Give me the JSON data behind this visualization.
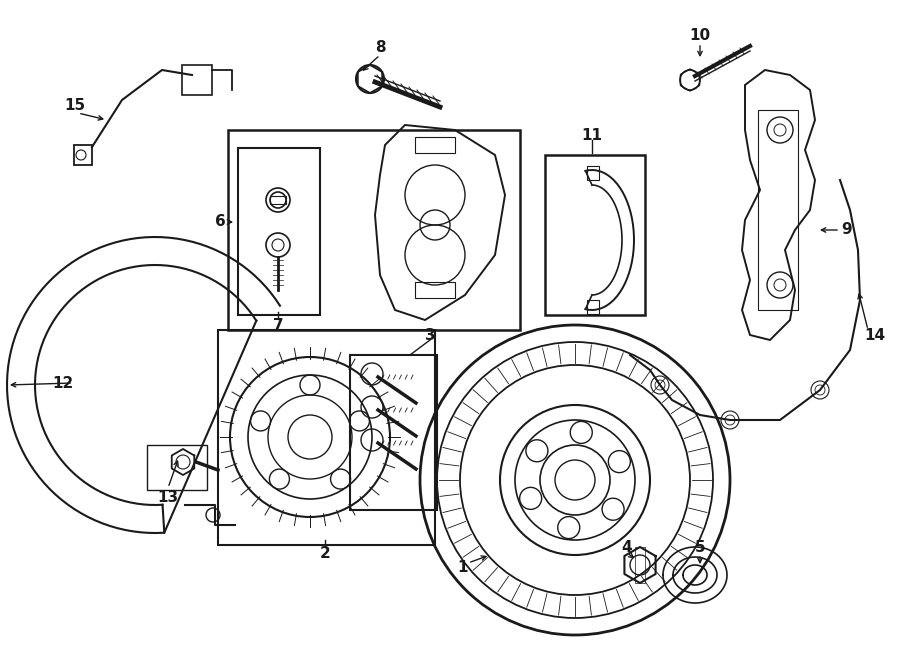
{
  "bg_color": "#ffffff",
  "line_color": "#1a1a1a",
  "fig_width": 9.0,
  "fig_height": 6.61,
  "dpi": 100,
  "border_color": "#333333",
  "label_fontsize": 11,
  "note_fontsize": 8.5
}
